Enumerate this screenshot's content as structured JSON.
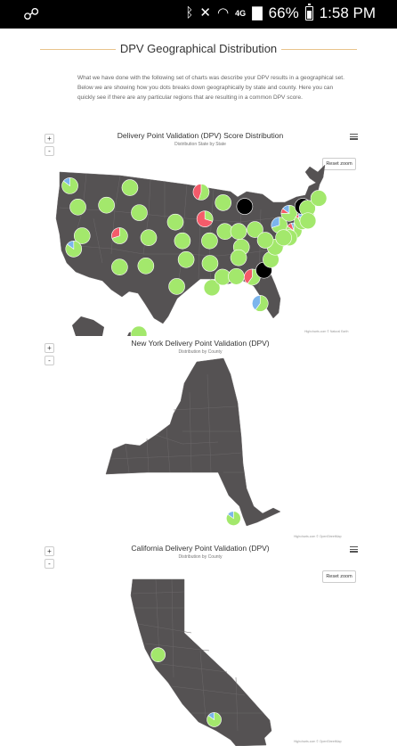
{
  "status_bar": {
    "left_icon": "link-icon",
    "bluetooth_icon": "bluetooth-icon",
    "mute_icon": "volume-mute-icon",
    "wifi_icon": "wifi-icon",
    "network": "4G",
    "signal_icon": "signal-icon",
    "battery_percent": "66%",
    "time": "1:58 PM"
  },
  "section": {
    "title": "DPV Geographical Distribution",
    "intro": "What we have done with the following set of charts was describe your DPV results in a geographical set. Below we are showing how you dots breaks down geographically by state and county. Here you can quickly see if there are any particular regions that are resulting in a common DPV score."
  },
  "colors": {
    "accent_line": "#e9c48c",
    "map_fill": "#555253",
    "pie_green": "#a3e86c",
    "pie_red": "#f45b6a",
    "pie_blue": "#7cb5ec",
    "pie_black": "#000000"
  },
  "charts": {
    "usa": {
      "title": "Delivery Point Validation (DPV) Score Distribution",
      "subtitle": "Distribution State by State",
      "zoom_in": "+",
      "zoom_out": "-",
      "reset": "Reset zoom",
      "credits": "Highcharts.com © Natural Earth"
    },
    "ny": {
      "title": "New York Delivery Point Validation (DPV)",
      "subtitle": "Distribution by County",
      "zoom_in": "+",
      "zoom_out": "-",
      "credits": "Highcharts.com © OpenStreetMap"
    },
    "ca": {
      "title": "California Delivery Point Validation (DPV)",
      "subtitle": "Distribution by County",
      "zoom_in": "+",
      "zoom_out": "-",
      "reset": "Reset zoom",
      "credits": "Highcharts.com © OpenStreetMap"
    }
  },
  "chart_data": [
    {
      "type": "map-pie",
      "title": "Delivery Point Validation (DPV) Score Distribution",
      "subtitle": "Distribution State by State",
      "series_colors": [
        "#a3e86c",
        "#f45b6a",
        "#7cb5ec",
        "#000000"
      ],
      "pies": [
        {
          "lon": -122.3,
          "lat": 47.3,
          "values": [
            0.85,
            0.0,
            0.15,
            0
          ]
        },
        {
          "lon": -120.6,
          "lat": 43.9,
          "values": [
            1,
            0,
            0,
            0
          ]
        },
        {
          "lon": -114.5,
          "lat": 44.2,
          "values": [
            1,
            0,
            0,
            0
          ]
        },
        {
          "lon": -109.5,
          "lat": 47.0,
          "values": [
            1,
            0,
            0,
            0
          ]
        },
        {
          "lon": -119.7,
          "lat": 39.3,
          "values": [
            1,
            0,
            0,
            0
          ]
        },
        {
          "lon": -121.5,
          "lat": 37.2,
          "values": [
            0.85,
            0,
            0.15,
            0
          ]
        },
        {
          "lon": -111.7,
          "lat": 39.3,
          "values": [
            0.7,
            0.3,
            0,
            0
          ]
        },
        {
          "lon": -107.5,
          "lat": 43.0,
          "values": [
            1,
            0,
            0,
            0
          ]
        },
        {
          "lon": -105.5,
          "lat": 39.0,
          "values": [
            1,
            0,
            0,
            0
          ]
        },
        {
          "lon": -111.7,
          "lat": 34.3,
          "values": [
            1,
            0,
            0,
            0
          ]
        },
        {
          "lon": -106.1,
          "lat": 34.5,
          "values": [
            1,
            0,
            0,
            0
          ]
        },
        {
          "lon": -99.5,
          "lat": 31.2,
          "values": [
            1,
            0,
            0,
            0
          ]
        },
        {
          "lon": -97.5,
          "lat": 35.5,
          "values": [
            1,
            0,
            0,
            0
          ]
        },
        {
          "lon": -98.3,
          "lat": 38.5,
          "values": [
            1,
            0,
            0,
            0
          ]
        },
        {
          "lon": -99.8,
          "lat": 41.5,
          "values": [
            1,
            0,
            0,
            0
          ]
        },
        {
          "lon": -94.3,
          "lat": 46.3,
          "values": [
            0.55,
            0.45,
            0,
            0
          ]
        },
        {
          "lon": -93.5,
          "lat": 42.0,
          "values": [
            0.3,
            0.7,
            0,
            0
          ]
        },
        {
          "lon": -92.5,
          "lat": 38.5,
          "values": [
            1,
            0,
            0,
            0
          ]
        },
        {
          "lon": -92.4,
          "lat": 34.9,
          "values": [
            1,
            0,
            0,
            0
          ]
        },
        {
          "lon": -92.0,
          "lat": 31.0,
          "values": [
            1,
            0,
            0,
            0
          ]
        },
        {
          "lon": -89.6,
          "lat": 44.6,
          "values": [
            1,
            0,
            0,
            0
          ]
        },
        {
          "lon": -89.2,
          "lat": 40.0,
          "values": [
            1,
            0,
            0,
            0
          ]
        },
        {
          "lon": -85.0,
          "lat": 44.0,
          "values": [
            0,
            0,
            0,
            1
          ]
        },
        {
          "lon": -86.3,
          "lat": 40.0,
          "values": [
            1,
            0,
            0,
            0
          ]
        },
        {
          "lon": -82.8,
          "lat": 40.3,
          "values": [
            1,
            0,
            0,
            0
          ]
        },
        {
          "lon": -85.7,
          "lat": 37.5,
          "values": [
            1,
            0,
            0,
            0
          ]
        },
        {
          "lon": -86.3,
          "lat": 35.8,
          "values": [
            1,
            0,
            0,
            0
          ]
        },
        {
          "lon": -89.7,
          "lat": 32.7,
          "values": [
            1,
            0,
            0,
            0
          ]
        },
        {
          "lon": -86.8,
          "lat": 32.8,
          "values": [
            1,
            0,
            0,
            0
          ]
        },
        {
          "lon": -83.4,
          "lat": 32.7,
          "values": [
            0.6,
            0.4,
            0,
            0
          ]
        },
        {
          "lon": -81.7,
          "lat": 28.5,
          "values": [
            0.6,
            0,
            0.4,
            0
          ]
        },
        {
          "lon": -80.9,
          "lat": 33.8,
          "values": [
            0,
            0,
            0,
            1
          ]
        },
        {
          "lon": -79.4,
          "lat": 35.5,
          "values": [
            1,
            0,
            0,
            0
          ]
        },
        {
          "lon": -78.5,
          "lat": 37.5,
          "values": [
            1,
            0,
            0,
            0
          ]
        },
        {
          "lon": -80.6,
          "lat": 38.6,
          "values": [
            1,
            0,
            0,
            0
          ]
        },
        {
          "lon": -77.6,
          "lat": 41.0,
          "values": [
            0.7,
            0,
            0.3,
            0
          ]
        },
        {
          "lon": -75.5,
          "lat": 42.9,
          "values": [
            0.75,
            0.1,
            0.15,
            0
          ]
        },
        {
          "lon": -74.5,
          "lat": 40.1,
          "values": [
            0.85,
            0.1,
            0.05,
            0
          ]
        },
        {
          "lon": -75.5,
          "lat": 39.0,
          "values": [
            1,
            0,
            0,
            0
          ]
        },
        {
          "lon": -76.7,
          "lat": 39.0,
          "values": [
            1,
            0,
            0,
            0
          ]
        },
        {
          "lon": -72.7,
          "lat": 41.6,
          "values": [
            0.85,
            0.15,
            0,
            0
          ]
        },
        {
          "lon": -71.8,
          "lat": 42.3,
          "values": [
            0.75,
            0,
            0.25,
            0
          ]
        },
        {
          "lon": -72.6,
          "lat": 44.0,
          "values": [
            0,
            0,
            0,
            1
          ]
        },
        {
          "lon": -71.6,
          "lat": 43.7,
          "values": [
            1,
            0,
            0,
            0
          ]
        },
        {
          "lon": -69.2,
          "lat": 45.3,
          "values": [
            1,
            0,
            0,
            0
          ]
        },
        {
          "lon": -71.5,
          "lat": 41.7,
          "values": [
            1,
            0,
            0,
            0
          ]
        },
        {
          "lon": -152.5,
          "lat": 64.0,
          "values": [
            1,
            0,
            0,
            0
          ]
        }
      ]
    },
    {
      "type": "map-pie",
      "title": "New York Delivery Point Validation (DPV)",
      "subtitle": "Distribution by County",
      "pies": [
        {
          "lon": -73.95,
          "lat": 40.7,
          "values": [
            0.85,
            0,
            0.15,
            0
          ]
        }
      ]
    },
    {
      "type": "map-pie",
      "title": "California Delivery Point Validation (DPV)",
      "subtitle": "Distribution by County",
      "pies": [
        {
          "lon": -122.4,
          "lat": 37.7,
          "values": [
            1,
            0,
            0,
            0
          ]
        },
        {
          "lon": -118.3,
          "lat": 34.0,
          "values": [
            0.85,
            0,
            0.15,
            0
          ]
        }
      ]
    }
  ]
}
